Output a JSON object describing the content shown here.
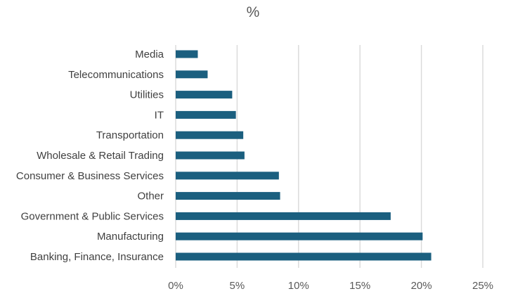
{
  "chart_data": {
    "type": "bar",
    "orientation": "horizontal",
    "title": "%",
    "categories": [
      "Media",
      "Telecommunications",
      "Utilities",
      "IT",
      "Transportation",
      "Wholesale & Retail Trading",
      "Consumer & Business Services",
      "Other",
      "Government & Public Services",
      "Manufacturing",
      "Banking, Finance, Insurance"
    ],
    "values": [
      1.8,
      2.6,
      4.6,
      4.9,
      5.5,
      5.6,
      8.4,
      8.5,
      17.5,
      20.1,
      20.8
    ],
    "value_unit": "%",
    "xlim": [
      0,
      25
    ],
    "x_ticks": [
      0,
      5,
      10,
      15,
      20,
      25
    ],
    "x_tick_labels": [
      "0%",
      "5%",
      "10%",
      "15%",
      "20%",
      "25%"
    ],
    "grid": "vertical",
    "bar_color": "#1b5f7f",
    "grid_color": "#d9d9d9",
    "legend": "none"
  }
}
